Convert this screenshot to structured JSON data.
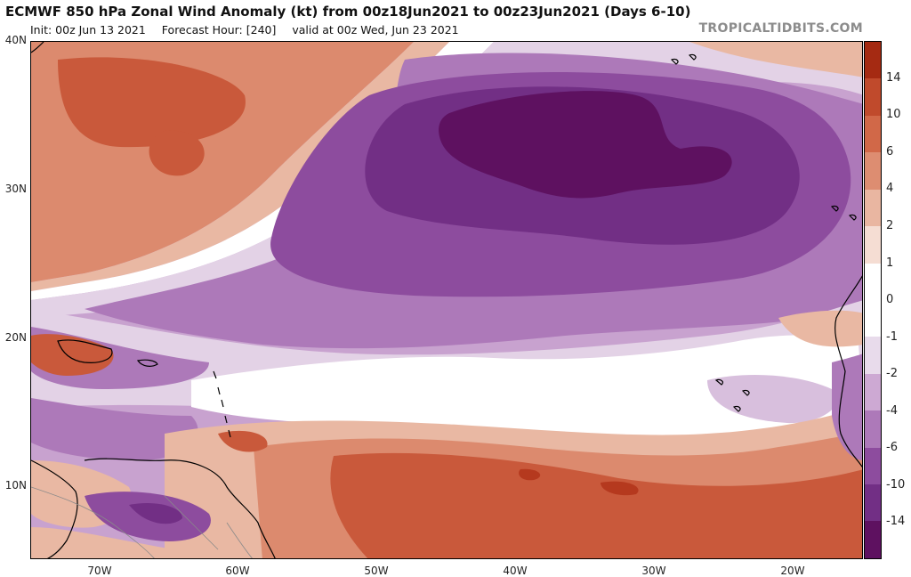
{
  "header": {
    "title": "ECMWF 850 hPa Zonal Wind Anomaly (kt) from 00z18Jun2021 to 00z23Jun2021 (Days 6-10)",
    "init": "Init: 00z Jun 13 2021",
    "forecast_hour": "Forecast Hour: [240]",
    "valid": "valid at 00z Wed, Jun 23 2021",
    "credit": "TROPICALTIDBITS.COM"
  },
  "map": {
    "lat_labels": [
      "40N",
      "30N",
      "20N",
      "10N"
    ],
    "lon_labels": [
      "70W",
      "60W",
      "50W",
      "40W",
      "30W",
      "20W"
    ],
    "colors": {
      "red_dark": "#b5391e",
      "red_med": "#c9593b",
      "red_light": "#dc8a6e",
      "salmon": "#e9b8a3",
      "pink_pale": "#f4dcd2",
      "white": "#ffffff",
      "lavender_pale": "#e3d2e6",
      "lavender": "#c8a2cf",
      "purple_light": "#ad79b9",
      "purple_med": "#8d4c9e",
      "purple_dark": "#722f85",
      "purple_deepest": "#5e1160",
      "coastline": "#000000"
    }
  },
  "colorbar": {
    "labels": [
      "14",
      "10",
      "6",
      "4",
      "2",
      "1",
      "0",
      "-1",
      "-2",
      "-4",
      "-6",
      "-10",
      "-14"
    ],
    "colors": [
      "#a52a12",
      "#c04a2c",
      "#d16848",
      "#dd8d71",
      "#e9b6a1",
      "#f5ddd3",
      "#ffffff",
      "#ffffff",
      "#e8dbeb",
      "#cda9d3",
      "#ad79b9",
      "#8d4c9e",
      "#722f85",
      "#5e1160"
    ]
  }
}
